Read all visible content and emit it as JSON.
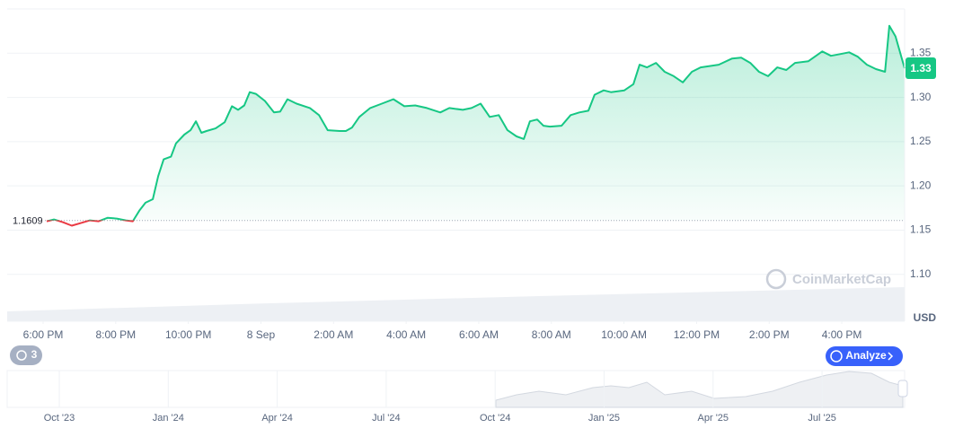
{
  "chart_data": {
    "type": "line",
    "x": [
      18.1,
      18.3,
      18.54,
      18.79,
      19.04,
      19.29,
      19.53,
      19.78,
      20.03,
      20.28,
      20.47,
      20.65,
      20.82,
      21.02,
      21.17,
      21.32,
      21.52,
      21.66,
      21.89,
      22.06,
      22.21,
      22.36,
      22.5,
      22.75,
      23.0,
      23.2,
      23.37,
      23.54,
      23.69,
      23.86,
      24.11,
      24.36,
      24.53,
      24.73,
      24.98,
      25.35,
      25.6,
      25.84,
      26.17,
      26.34,
      26.51,
      26.71,
      27.01,
      27.33,
      27.65,
      27.95,
      28.25,
      28.57,
      28.94,
      29.19,
      29.56,
      29.8,
      30.05,
      30.3,
      30.55,
      30.79,
      31.04,
      31.24,
      31.41,
      31.61,
      31.78,
      31.96,
      32.28,
      32.53,
      32.77,
      33.02,
      33.19,
      33.44,
      33.64,
      34.01,
      34.26,
      34.43,
      34.63,
      34.88,
      35.12,
      35.37,
      35.62,
      35.87,
      36.11,
      36.61,
      36.98,
      37.23,
      37.48,
      37.72,
      37.97,
      38.22,
      38.47,
      38.71,
      39.08,
      39.46,
      39.7,
      39.95,
      40.2,
      40.44,
      40.69,
      40.94,
      41.19,
      41.31,
      41.48,
      41.73
    ],
    "values": [
      1.16,
      1.162,
      1.159,
      1.155,
      1.158,
      1.161,
      1.16,
      1.164,
      1.163,
      1.161,
      1.16,
      1.172,
      1.181,
      1.185,
      1.211,
      1.23,
      1.233,
      1.248,
      1.258,
      1.263,
      1.273,
      1.26,
      1.262,
      1.265,
      1.272,
      1.29,
      1.286,
      1.291,
      1.306,
      1.304,
      1.296,
      1.283,
      1.284,
      1.298,
      1.293,
      1.288,
      1.28,
      1.263,
      1.262,
      1.262,
      1.266,
      1.278,
      1.288,
      1.293,
      1.298,
      1.29,
      1.291,
      1.288,
      1.283,
      1.288,
      1.286,
      1.288,
      1.293,
      1.278,
      1.28,
      1.263,
      1.256,
      1.253,
      1.273,
      1.275,
      1.268,
      1.267,
      1.268,
      1.28,
      1.283,
      1.285,
      1.303,
      1.308,
      1.306,
      1.308,
      1.315,
      1.337,
      1.334,
      1.339,
      1.329,
      1.324,
      1.317,
      1.329,
      1.334,
      1.337,
      1.344,
      1.345,
      1.339,
      1.329,
      1.324,
      1.334,
      1.331,
      1.339,
      1.341,
      1.352,
      1.347,
      1.349,
      1.351,
      1.346,
      1.337,
      1.332,
      1.329,
      1.381,
      1.369,
      1.333
    ],
    "value_labels": [
      null,
      null,
      null,
      null,
      null,
      null,
      null,
      null,
      null,
      null,
      null,
      null,
      null,
      null,
      null,
      null,
      null,
      null,
      null,
      null,
      null,
      null,
      null,
      null,
      null,
      null,
      null,
      null,
      null,
      null,
      null,
      null,
      null,
      null,
      null,
      null,
      null,
      null,
      null,
      null,
      null,
      null,
      null,
      null,
      null,
      null,
      null,
      null,
      null,
      null,
      null,
      null,
      null,
      null,
      null,
      null,
      null,
      null,
      null,
      null,
      null,
      null,
      null,
      null,
      null,
      null,
      null,
      null,
      null,
      null,
      null,
      null,
      null,
      null,
      null,
      null,
      null,
      null,
      null,
      null,
      null,
      null,
      null,
      null,
      null,
      null,
      null,
      null,
      null,
      null,
      null,
      null,
      null,
      null,
      null,
      null,
      null,
      null,
      null,
      "1.33"
    ],
    "color": "#16c784",
    "below_color": "#ea3943",
    "reference": 1.1609,
    "xlim": [
      17.01,
      41.73
    ],
    "xticks": [
      {
        "value": 18,
        "label": "6:00 PM"
      },
      {
        "value": 20,
        "label": "8:00 PM"
      },
      {
        "value": 22,
        "label": "10:00 PM"
      },
      {
        "value": 24,
        "label": "8 Sep"
      },
      {
        "value": 26,
        "label": "2:00 AM"
      },
      {
        "value": 28,
        "label": "4:00 AM"
      },
      {
        "value": 30,
        "label": "6:00 AM"
      },
      {
        "value": 32,
        "label": "8:00 AM"
      },
      {
        "value": 34,
        "label": "10:00 AM"
      },
      {
        "value": 36,
        "label": "12:00 PM"
      },
      {
        "value": 38,
        "label": "2:00 PM"
      },
      {
        "value": 40,
        "label": "4:00 PM"
      }
    ],
    "ylim": [
      1.047,
      1.4
    ],
    "yticks": [
      {
        "value": 1.1,
        "label": "1.10"
      },
      1.15,
      {
        "value": 1.2,
        "label": "1.20"
      },
      1.25,
      {
        "value": 1.3,
        "label": "1.30"
      },
      1.35
    ],
    "y_axis_side": "right",
    "grid": true,
    "y_unit": "USD"
  },
  "navigator": {
    "labels": [
      "Oct '23",
      "Jan '24",
      "Apr '24",
      "Jul '24",
      "Oct '24",
      "Jan '25",
      "Apr '25",
      "Jul '25"
    ]
  },
  "ui": {
    "watermark": "CoinMarketCap",
    "badge": "3",
    "button": "Analyze"
  }
}
